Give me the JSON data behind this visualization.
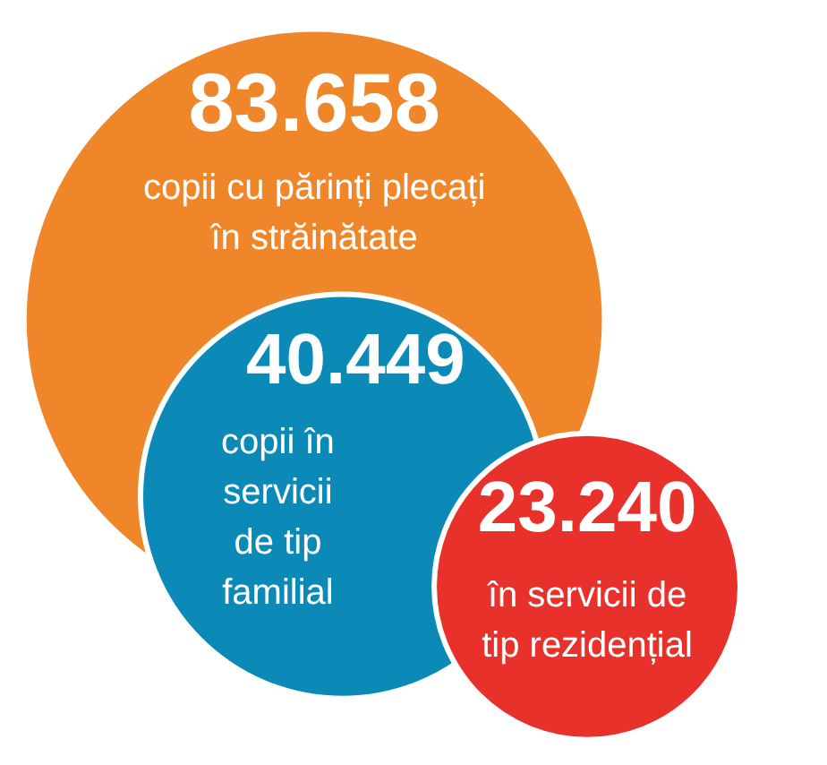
{
  "chart_data": {
    "type": "other",
    "categories": [
      "copii cu părinți plecați\nîn străinătate",
      "copii în\nservicii\nde tip\nfamilial",
      "în servicii de\ntip rezidențial"
    ],
    "values": [
      83658,
      40449,
      23240
    ],
    "value_labels": [
      "83.658",
      "40.449",
      "23.240"
    ],
    "colors": [
      "#f0862a",
      "#0b8ab8",
      "#e8312b"
    ]
  }
}
